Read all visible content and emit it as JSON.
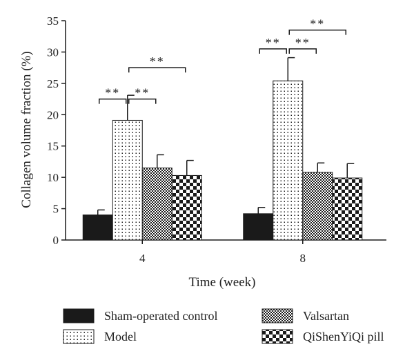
{
  "chart_data": {
    "type": "bar",
    "xlabel": "Time (week)",
    "ylabel": "Collagen volume fraction (%)",
    "ylim": [
      0,
      35
    ],
    "yticks": [
      0,
      5,
      10,
      15,
      20,
      25,
      30,
      35
    ],
    "categories": [
      "4",
      "8"
    ],
    "grid": false,
    "legend_position": "bottom",
    "series": [
      {
        "name": "Sham-operated control",
        "pattern": "solid",
        "values": [
          4.0,
          4.2
        ],
        "errors": [
          0.8,
          1.0
        ]
      },
      {
        "name": "Model",
        "pattern": "dots",
        "values": [
          19.1,
          25.4
        ],
        "errors": [
          4.0,
          3.7
        ]
      },
      {
        "name": "Valsartan",
        "pattern": "fine-checker",
        "values": [
          11.5,
          10.8
        ],
        "errors": [
          2.1,
          1.5
        ]
      },
      {
        "name": "QiShenYiQi pill",
        "pattern": "checker",
        "values": [
          10.3,
          9.9
        ],
        "errors": [
          2.4,
          2.3
        ]
      }
    ],
    "significance": [
      {
        "category": "4",
        "from_series": 0,
        "to_series": 1,
        "level": 22.5,
        "label": "**"
      },
      {
        "category": "4",
        "from_series": 1,
        "to_series": 2,
        "level": 22.5,
        "label": "**"
      },
      {
        "category": "4",
        "from_series": 1,
        "to_series": 3,
        "level": 27.5,
        "label": "**"
      },
      {
        "category": "8",
        "from_series": 0,
        "to_series": 1,
        "level": 30.5,
        "label": "**"
      },
      {
        "category": "8",
        "from_series": 1,
        "to_series": 2,
        "level": 30.5,
        "label": "**"
      },
      {
        "category": "8",
        "from_series": 1,
        "to_series": 3,
        "level": 33.5,
        "label": "**"
      }
    ],
    "colors": {
      "ink": "#1a1a1a",
      "background": "#ffffff"
    }
  }
}
